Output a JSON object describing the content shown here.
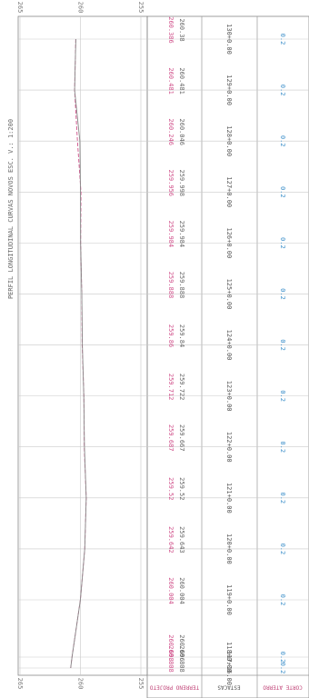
{
  "title": "PERFIL LONGITUDINAL CURVAS NOVOS   ESC. V.: 1:200",
  "elevation_ticks": [
    265,
    260,
    255
  ],
  "headers": {
    "elevations": "TERRENO PROJETO",
    "stations": "ESTACAS",
    "cut_fill": "CORTE ATERRO"
  },
  "stations": [
    "130+0.00",
    "129+0.00",
    "128+0.00",
    "127+0.00",
    "126+0.00",
    "125+0.00",
    "124+0.00",
    "123+0.00",
    "122+0.00",
    "121+0.00",
    "120+0.00",
    "119+0.00",
    "118+0.00",
    "117+16.00"
  ],
  "terrain": [
    260.386,
    260.481,
    260.246,
    259.956,
    259.984,
    259.888,
    259.86,
    259.712,
    259.687,
    259.52,
    259.642,
    260.004,
    260.698,
    260.808
  ],
  "project": [
    260.38,
    260.481,
    260.046,
    259.998,
    259.984,
    259.888,
    259.84,
    259.722,
    259.667,
    259.52,
    259.643,
    260.004,
    260.696,
    260.808
  ],
  "cut_fill": [
    0.2,
    0.2,
    0.2,
    0.2,
    0.2,
    0.2,
    0.2,
    0.2,
    0.2,
    0.2,
    0.2,
    0.2,
    0.2,
    0.2
  ]
}
